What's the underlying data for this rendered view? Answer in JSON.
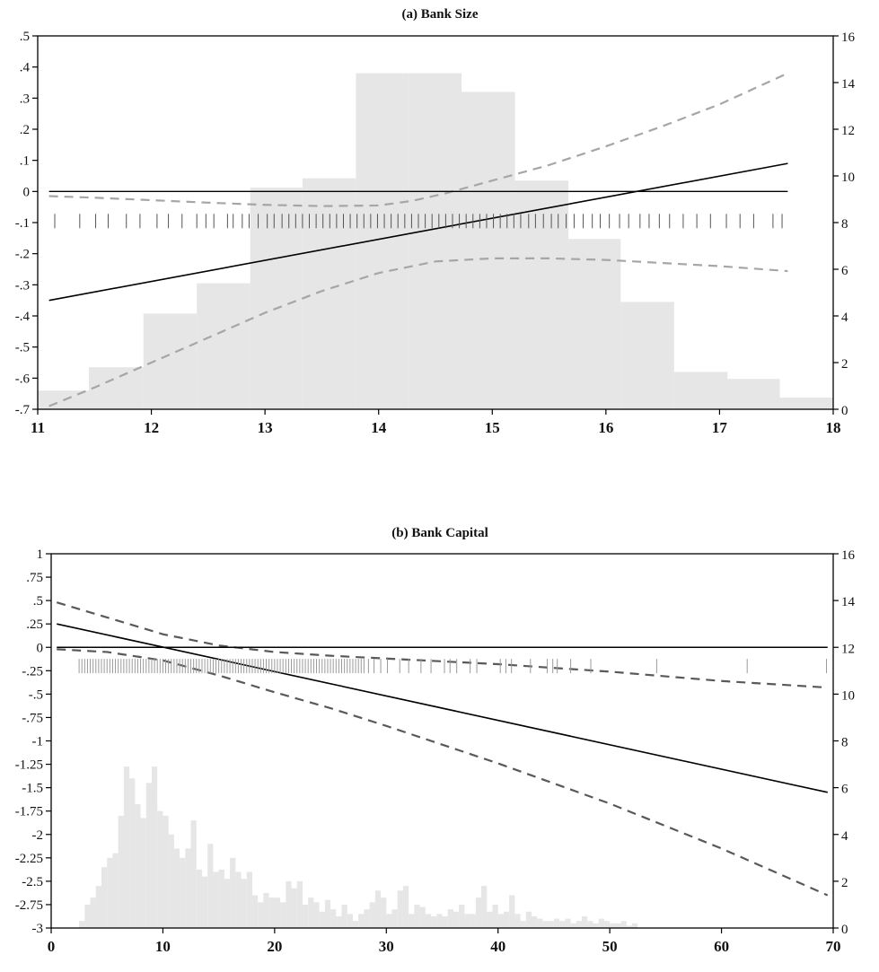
{
  "chart_data": [
    {
      "type": "line",
      "title": "(a) Bank Size",
      "xlim": [
        11,
        18
      ],
      "ylim": [
        -0.7,
        0.5
      ],
      "y2lim": [
        0,
        16
      ],
      "x_ticks": [
        "11",
        "12",
        "13",
        "14",
        "15",
        "16",
        "17",
        "18"
      ],
      "y_ticks": [
        ".5",
        ".4",
        ".3",
        ".2",
        ".1",
        "0",
        "-.1",
        "-.2",
        "-.3",
        "-.4",
        "-.5",
        "-.6",
        "-.7"
      ],
      "y2_ticks": [
        "16",
        "14",
        "12",
        "10",
        "8",
        "6",
        "4",
        "2",
        "0"
      ],
      "histogram": {
        "bin_edges": [
          11,
          11.45,
          11.93,
          12.4,
          12.87,
          13.33,
          13.8,
          14.27,
          14.73,
          15.2,
          15.67,
          16.13,
          16.6,
          17.07,
          17.53,
          18
        ],
        "values": [
          0.8,
          1.8,
          4.1,
          5.4,
          9.5,
          9.9,
          14.4,
          14.4,
          13.6,
          9.8,
          7.3,
          4.6,
          1.6,
          1.3,
          0.5
        ]
      },
      "series": [
        {
          "role": "marginal-effect",
          "style": "solid",
          "x": [
            11.1,
            17.6
          ],
          "y": [
            -0.35,
            0.09
          ]
        },
        {
          "role": "upper-ci",
          "style": "dashed",
          "x": [
            11.1,
            11.5,
            12.0,
            12.5,
            13.0,
            13.5,
            14.0,
            14.3,
            14.6,
            15.0,
            15.5,
            16.0,
            16.5,
            17.0,
            17.3,
            17.6
          ],
          "y": [
            -0.015,
            -0.02,
            -0.028,
            -0.036,
            -0.043,
            -0.047,
            -0.045,
            -0.03,
            -0.005,
            0.035,
            0.085,
            0.145,
            0.21,
            0.28,
            0.33,
            0.38
          ]
        },
        {
          "role": "lower-ci",
          "style": "dashed",
          "x": [
            11.1,
            11.5,
            12.0,
            12.5,
            13.0,
            13.5,
            14.0,
            14.5,
            15.0,
            15.5,
            16.0,
            16.5,
            17.0,
            17.6
          ],
          "y": [
            -0.69,
            -0.63,
            -0.55,
            -0.47,
            -0.39,
            -0.32,
            -0.262,
            -0.225,
            -0.215,
            -0.215,
            -0.22,
            -0.23,
            -0.24,
            -0.256
          ]
        },
        {
          "role": "zero-reference",
          "style": "solid",
          "x": [
            11.1,
            17.6
          ],
          "y": [
            0,
            0
          ]
        }
      ],
      "rug": {
        "y": -0.095,
        "x": [
          11.15,
          11.37,
          11.51,
          11.62,
          11.78,
          11.9,
          12.05,
          12.15,
          12.27,
          12.4,
          12.48,
          12.55,
          12.67,
          12.72,
          12.8,
          12.86,
          12.94,
          13.02,
          13.08,
          13.15,
          13.21,
          13.27,
          13.33,
          13.39,
          13.45,
          13.51,
          13.57,
          13.63,
          13.69,
          13.75,
          13.81,
          13.87,
          13.93,
          13.99,
          14.05,
          14.11,
          14.17,
          14.23,
          14.29,
          14.35,
          14.41,
          14.47,
          14.53,
          14.59,
          14.65,
          14.71,
          14.77,
          14.83,
          14.89,
          14.95,
          15.01,
          15.07,
          15.13,
          15.19,
          15.25,
          15.32,
          15.38,
          15.45,
          15.52,
          15.58,
          15.65,
          15.72,
          15.8,
          15.88,
          15.95,
          16.03,
          16.12,
          16.2,
          16.3,
          16.38,
          16.47,
          16.56,
          16.68,
          16.8,
          16.92,
          17.06,
          17.18,
          17.3,
          17.47,
          17.55
        ]
      }
    },
    {
      "type": "line",
      "title": "(b) Bank Capital",
      "xlim": [
        0,
        70
      ],
      "ylim": [
        -3,
        1
      ],
      "y2lim": [
        0,
        16
      ],
      "x_ticks": [
        "0",
        "10",
        "20",
        "30",
        "40",
        "50",
        "60",
        "70"
      ],
      "y_ticks": [
        "1",
        ".75",
        ".5",
        ".25",
        "0",
        "-.25",
        "-.5",
        "-.75",
        "-1",
        "-1.25",
        "-1.5",
        "-1.75",
        "-2",
        "-2.25",
        "-2.5",
        "-2.75",
        "-3"
      ],
      "y2_ticks": [
        "16",
        "14",
        "12",
        "10",
        "8",
        "6",
        "4",
        "2",
        "0"
      ],
      "histogram": {
        "bin_start": 2.5,
        "bin_width": 0.5,
        "values": [
          0.3,
          1.0,
          1.3,
          1.8,
          2.6,
          3.0,
          3.2,
          4.8,
          6.9,
          6.4,
          5.3,
          4.7,
          6.2,
          6.9,
          5.0,
          4.8,
          4.0,
          3.4,
          3.0,
          3.4,
          4.6,
          2.5,
          2.2,
          3.6,
          2.4,
          2.5,
          2.1,
          3.0,
          2.4,
          2.1,
          2.4,
          1.4,
          1.1,
          1.5,
          1.3,
          1.3,
          1.1,
          2.0,
          1.7,
          2.0,
          1.0,
          1.3,
          1.1,
          0.7,
          1.2,
          0.8,
          0.5,
          1.0,
          0.6,
          0.3,
          0.6,
          0.8,
          1.1,
          1.6,
          1.3,
          0.6,
          0.8,
          1.6,
          1.8,
          0.6,
          1.0,
          0.9,
          0.6,
          0.5,
          0.6,
          0.5,
          0.8,
          0.7,
          1.0,
          0.6,
          0.6,
          1.3,
          1.8,
          0.7,
          1.0,
          0.6,
          0.7,
          1.4,
          0.6,
          0.3,
          0.7,
          0.5,
          0.4,
          0.3,
          0.3,
          0.4,
          0.3,
          0.4,
          0.2,
          0.3,
          0.5,
          0.3,
          0.2,
          0.4,
          0.3,
          0.2,
          0.2,
          0.3,
          0.1,
          0.2
        ]
      },
      "series": [
        {
          "role": "marginal-effect",
          "style": "solid",
          "x": [
            0.5,
            69.5
          ],
          "y": [
            0.25,
            -1.55
          ]
        },
        {
          "role": "upper-ci",
          "style": "dashed",
          "x": [
            0.5,
            5,
            10,
            15,
            20,
            25,
            30,
            40,
            50,
            60,
            69.5
          ],
          "y": [
            0.48,
            0.32,
            0.14,
            0.02,
            -0.05,
            -0.09,
            -0.12,
            -0.18,
            -0.26,
            -0.36,
            -0.43
          ]
        },
        {
          "role": "lower-ci",
          "style": "dashed",
          "x": [
            0.5,
            5,
            10,
            15,
            20,
            25,
            30,
            40,
            50,
            60,
            69.5
          ],
          "y": [
            -0.02,
            -0.05,
            -0.14,
            -0.3,
            -0.48,
            -0.65,
            -0.84,
            -1.24,
            -1.67,
            -2.15,
            -2.65
          ]
        },
        {
          "role": "zero-reference",
          "style": "solid",
          "x": [
            0.5,
            69.5
          ],
          "y": [
            0,
            0
          ]
        }
      ],
      "rug": {
        "y": -0.2,
        "dense_from": 2.5,
        "dense_to": 28,
        "dense_step": 0.25,
        "x": [
          28.4,
          28.9,
          29.5,
          30.1,
          31.2,
          32.0,
          33.1,
          34.0,
          35.2,
          35.7,
          36.3,
          37.5,
          38.1,
          40.2,
          40.7,
          41.2,
          42.9,
          44.4,
          44.9,
          45.3,
          46.5,
          48.3,
          54.2,
          62.3,
          69.4
        ]
      }
    }
  ]
}
